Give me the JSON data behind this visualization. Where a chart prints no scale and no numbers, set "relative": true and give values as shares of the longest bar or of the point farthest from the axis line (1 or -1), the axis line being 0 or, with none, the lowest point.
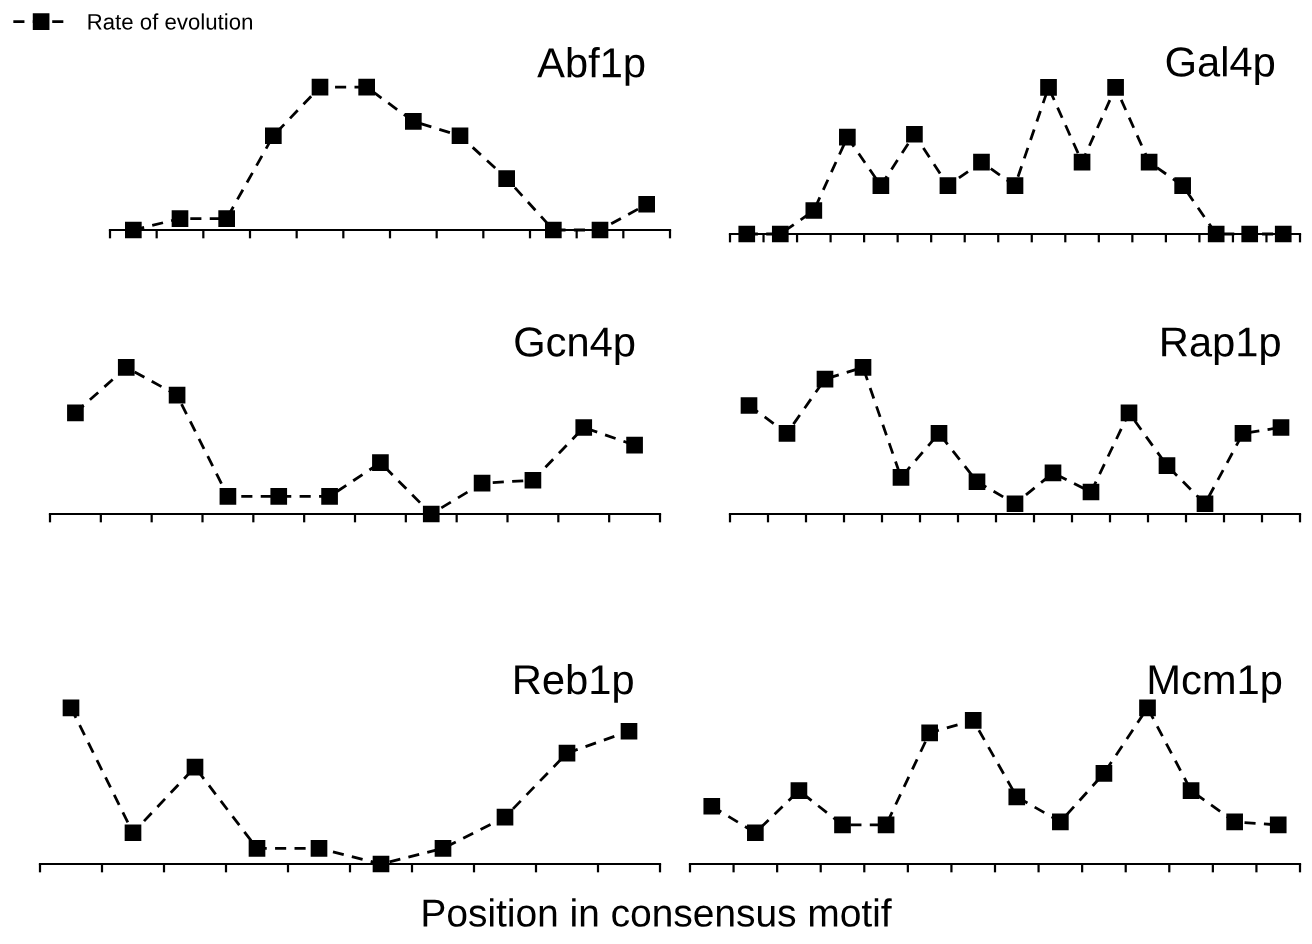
{
  "chart_data": [
    {
      "type": "line",
      "title": "Abf1p",
      "relative": true,
      "legend": "top left",
      "marker": "square",
      "line_style": "dashed",
      "xlabel": "Position in consensus motif",
      "categories": [
        null,
        null,
        null,
        null,
        null,
        null,
        null,
        null,
        null,
        null,
        null,
        null
      ],
      "series": [
        {
          "name": "Rate of evolution",
          "color": "#000000",
          "values": [
            0,
            0.08,
            0.08,
            0.66,
            1,
            1,
            0.76,
            0.66,
            0.36,
            0,
            0,
            0.18
          ]
        }
      ]
    },
    {
      "type": "line",
      "title": "Gal4p",
      "relative": true,
      "marker": "square",
      "line_style": "dashed",
      "categories": [
        null,
        null,
        null,
        null,
        null,
        null,
        null,
        null,
        null,
        null,
        null,
        null,
        null,
        null,
        null,
        null,
        null
      ],
      "series": [
        {
          "color": "#000000",
          "values": [
            0,
            0,
            0.16,
            0.66,
            0.33,
            0.68,
            0.33,
            0.49,
            0.33,
            1,
            0.49,
            1,
            0.49,
            0.33,
            0,
            0,
            0
          ]
        }
      ]
    },
    {
      "type": "line",
      "title": "Gcn4p",
      "relative": true,
      "marker": "square",
      "line_style": "dashed",
      "categories": [
        null,
        null,
        null,
        null,
        null,
        null,
        null,
        null,
        null,
        null,
        null,
        null
      ],
      "series": [
        {
          "color": "#000000",
          "values": [
            0.69,
            1,
            0.81,
            0.12,
            0.12,
            0.12,
            0.35,
            0,
            0.21,
            0.23,
            0.59,
            0.47
          ]
        }
      ]
    },
    {
      "type": "line",
      "title": "Rap1p",
      "relative": true,
      "marker": "square",
      "line_style": "dashed",
      "categories": [
        null,
        null,
        null,
        null,
        null,
        null,
        null,
        null,
        null,
        null,
        null,
        null,
        null,
        null,
        null
      ],
      "series": [
        {
          "color": "#000000",
          "values": [
            0.74,
            0.55,
            0.92,
            1,
            0.25,
            0.55,
            0.22,
            0.07,
            0.28,
            0.15,
            0.69,
            0.33,
            0.07,
            0.55,
            0.59
          ]
        }
      ]
    },
    {
      "type": "line",
      "title": "Reb1p",
      "relative": true,
      "marker": "square",
      "line_style": "dashed",
      "categories": [
        null,
        null,
        null,
        null,
        null,
        null,
        null,
        null,
        null,
        null
      ],
      "series": [
        {
          "color": "#000000",
          "values": [
            1,
            0.2,
            0.62,
            0.1,
            0.1,
            0,
            0.1,
            0.3,
            0.71,
            0.85
          ]
        }
      ]
    },
    {
      "type": "line",
      "title": "Mcm1p",
      "relative": true,
      "marker": "square",
      "line_style": "dashed",
      "categories": [
        null,
        null,
        null,
        null,
        null,
        null,
        null,
        null,
        null,
        null,
        null,
        null,
        null,
        null
      ],
      "series": [
        {
          "color": "#000000",
          "values": [
            0.37,
            0.2,
            0.47,
            0.25,
            0.25,
            0.84,
            0.92,
            0.43,
            0.27,
            0.58,
            1,
            0.47,
            0.27,
            0.25
          ]
        }
      ]
    }
  ]
}
